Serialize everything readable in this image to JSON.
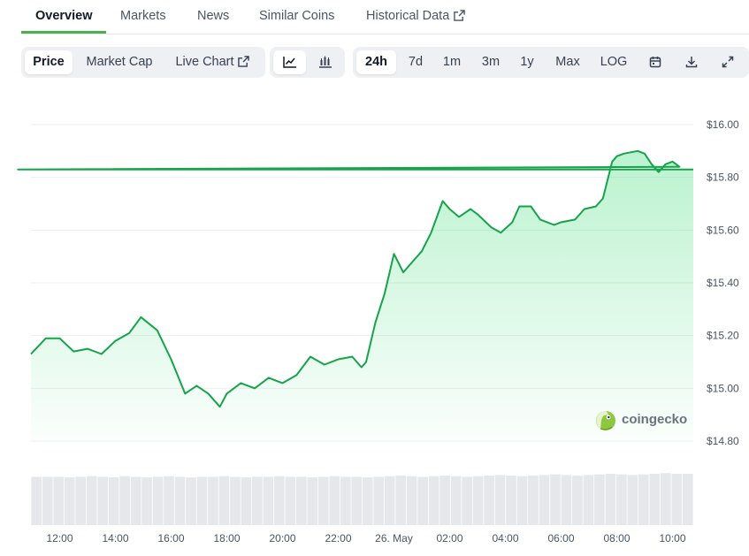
{
  "tabs": [
    {
      "label": "Overview",
      "active": true
    },
    {
      "label": "Markets"
    },
    {
      "label": "News"
    },
    {
      "label": "Similar Coins"
    },
    {
      "label": "Historical Data",
      "icon": "external-link-icon"
    }
  ],
  "toolbar": {
    "metric_tabs": [
      {
        "label": "Price",
        "selected": true
      },
      {
        "label": "Market Cap"
      },
      {
        "label": "Live Chart",
        "icon": "external-link-icon"
      }
    ],
    "chart_types": [
      {
        "icon": "line-chart-icon",
        "selected": true
      },
      {
        "icon": "candlestick-chart-icon"
      }
    ],
    "ranges": [
      {
        "label": "24h",
        "selected": true
      },
      {
        "label": "7d"
      },
      {
        "label": "1m"
      },
      {
        "label": "3m"
      },
      {
        "label": "1y"
      },
      {
        "label": "Max"
      },
      {
        "label": "LOG"
      }
    ],
    "action_icons": [
      "calendar-icon",
      "download-icon",
      "fullscreen-icon"
    ]
  },
  "watermark": {
    "text": "coingecko",
    "icon": "coingecko-logo-icon"
  },
  "colors": {
    "line": "#16a34a",
    "fill": "#4ade80",
    "volume": "#e5e7eb",
    "grid": "#eceef1"
  },
  "chart_data": {
    "type": "area",
    "title": "",
    "xlabel": "",
    "ylabel": "",
    "x_ticks": [
      "12:00",
      "14:00",
      "16:00",
      "18:00",
      "20:00",
      "22:00",
      "26. May",
      "02:00",
      "04:00",
      "06:00",
      "08:00",
      "10:00"
    ],
    "y_ticks": [
      "$16.00",
      "$15.80",
      "$15.60",
      "$15.40",
      "$15.20",
      "$15.00",
      "$14.80"
    ],
    "ylim": [
      14.8,
      16.0
    ],
    "grid": true,
    "legend": "none",
    "series": [
      {
        "x": [
          "11:00",
          "11:30",
          "12:00",
          "12:30",
          "13:00",
          "13:30",
          "14:00",
          "14:30",
          "14:55",
          "15:30",
          "16:00",
          "16:30",
          "16:55",
          "17:20",
          "17:45",
          "18:00",
          "18:30",
          "19:00",
          "19:30",
          "20:00",
          "20:30",
          "21:00",
          "21:30",
          "22:00",
          "22:30",
          "22:50",
          "23:00",
          "23:20",
          "23:40",
          "00:00",
          "00:20",
          "00:45",
          "01:00",
          "01:20",
          "01:45",
          "02:00",
          "02:20",
          "02:45",
          "03:00",
          "03:30",
          "03:50",
          "04:15",
          "04:30",
          "04:55",
          "05:15",
          "05:45",
          "06:00",
          "06:30",
          "06:50",
          "07:15",
          "07:30",
          "07:50",
          "08:00",
          "08:15",
          "08:45",
          "09:00",
          "09:15",
          "09:30",
          "09:45",
          "10:00",
          "10:15",
          "10:30",
          "10:50"
        ],
        "values": [
          15.13,
          15.19,
          15.19,
          15.14,
          15.15,
          15.13,
          15.18,
          15.21,
          15.27,
          15.22,
          15.11,
          14.98,
          15.01,
          14.98,
          14.93,
          14.98,
          15.02,
          15.0,
          15.04,
          15.02,
          15.05,
          15.12,
          15.09,
          15.11,
          15.12,
          15.08,
          15.1,
          15.25,
          15.36,
          15.51,
          15.44,
          15.49,
          15.52,
          15.59,
          15.71,
          15.68,
          15.65,
          15.68,
          15.66,
          15.61,
          15.59,
          15.63,
          15.69,
          15.69,
          15.64,
          15.62,
          15.63,
          15.64,
          15.68,
          15.69,
          15.72,
          15.86,
          15.88,
          15.89,
          15.9,
          15.89,
          15.85,
          15.82,
          15.85,
          15.86,
          15.84,
          15.83,
          15.83
        ]
      }
    ],
    "volume": {
      "x_range": [
        "11:00",
        "10:50"
      ],
      "values": [
        1.6,
        1.6,
        1.6,
        1.58,
        1.6,
        1.62,
        1.6,
        1.58,
        1.62,
        1.6,
        1.58,
        1.6,
        1.62,
        1.6,
        1.58,
        1.6,
        1.6,
        1.62,
        1.6,
        1.58,
        1.6,
        1.6,
        1.62,
        1.6,
        1.6,
        1.58,
        1.6,
        1.62,
        1.6,
        1.6,
        1.58,
        1.6,
        1.62,
        1.64,
        1.62,
        1.6,
        1.62,
        1.64,
        1.62,
        1.6,
        1.62,
        1.64,
        1.66,
        1.64,
        1.62,
        1.64,
        1.66,
        1.68,
        1.66,
        1.64,
        1.66,
        1.68,
        1.7,
        1.68,
        1.66,
        1.68,
        1.7,
        1.72,
        1.7,
        1.7
      ]
    }
  }
}
